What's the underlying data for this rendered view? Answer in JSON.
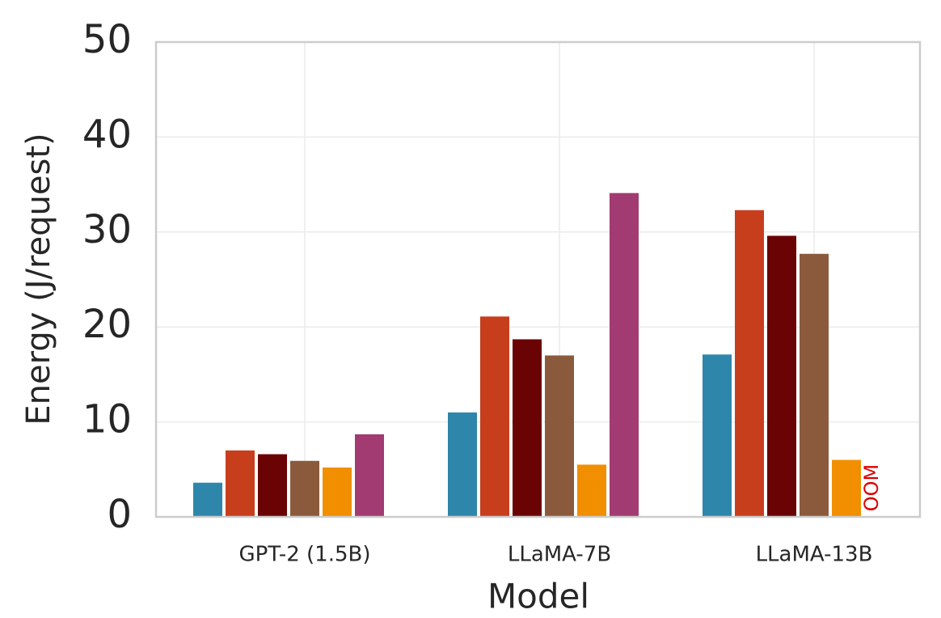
{
  "chart_data": {
    "type": "bar",
    "xlabel": "Model",
    "ylabel": "Energy (J/request)",
    "categories": [
      "GPT-2 (1.5B)",
      "LLaMA-7B",
      "LLaMA-13B"
    ],
    "series": [
      {
        "color": "#2e86ab",
        "values": [
          3.6,
          11.0,
          17.1
        ]
      },
      {
        "color": "#c73e1d",
        "values": [
          7.0,
          21.1,
          32.3
        ]
      },
      {
        "color": "#6a0404",
        "values": [
          6.6,
          18.7,
          29.6
        ]
      },
      {
        "color": "#8b5a3c",
        "values": [
          5.9,
          17.0,
          27.7
        ]
      },
      {
        "color": "#f18f01",
        "values": [
          5.2,
          5.5,
          6.0
        ]
      },
      {
        "color": "#a23b72",
        "values": [
          8.7,
          34.1,
          null
        ]
      }
    ],
    "annotation": "OOM",
    "annotation_color": "#dd0000",
    "ylim": [
      0,
      50
    ],
    "yticks": [
      0,
      10,
      20,
      30,
      40,
      50
    ],
    "grid": true
  }
}
